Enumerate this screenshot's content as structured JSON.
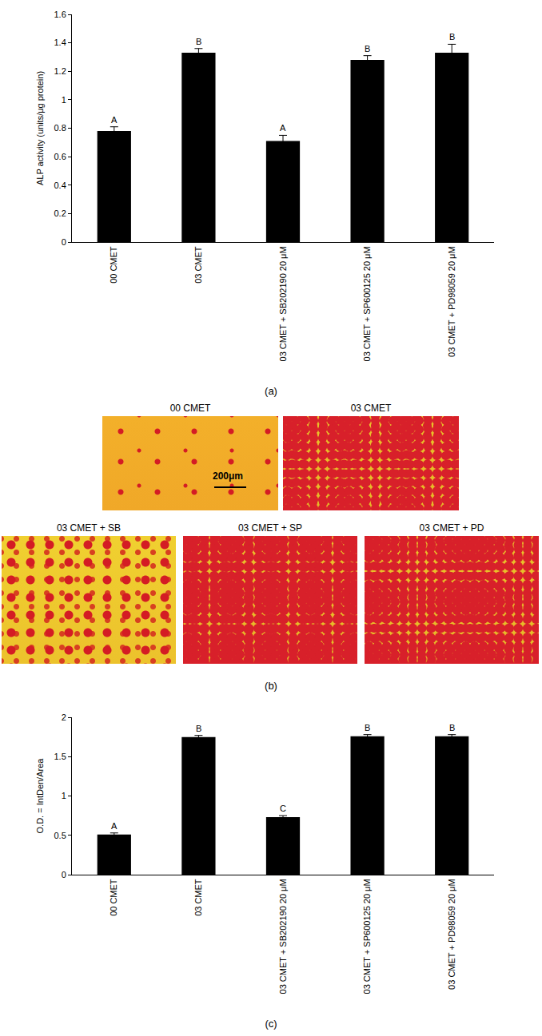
{
  "chart_data": [
    {
      "type": "bar",
      "panel_label": "(a)",
      "y_label": "ALP activity (units/μg protein)",
      "categories": [
        "00 CMET",
        "03 CMET",
        "03 CMET + SB202190 20 μM",
        "03 CMET + SP600125 20 μM",
        "03 CMET + PD98059 20 μM"
      ],
      "values": [
        0.78,
        1.33,
        0.71,
        1.28,
        1.33
      ],
      "errors": [
        0.03,
        0.03,
        0.04,
        0.03,
        0.06
      ],
      "significance_labels": [
        "A",
        "B",
        "A",
        "B",
        "B"
      ],
      "color": "#000000",
      "ylim": [
        0,
        1.6
      ],
      "yticks": [
        0,
        0.2,
        0.4,
        0.6,
        0.8,
        1,
        1.2,
        1.4,
        1.6
      ],
      "grid": false
    },
    {
      "type": "bar",
      "panel_label": "(c)",
      "y_label": "O.D. = IntDen/Area",
      "categories": [
        "00 CMET",
        "03 CMET",
        "03 CMET + SB202190 20 μM",
        "03 CMET + SP600125 20 μM",
        "03 CMET + PD98059 20 μM"
      ],
      "values": [
        0.51,
        1.75,
        0.73,
        1.76,
        1.76
      ],
      "errors": [
        0.02,
        0.02,
        0.02,
        0.02,
        0.02
      ],
      "significance_labels": [
        "A",
        "B",
        "C",
        "B",
        "B"
      ],
      "color": "#000000",
      "ylim": [
        0,
        2
      ],
      "yticks": [
        0,
        0.5,
        1,
        1.5,
        2
      ],
      "grid": false
    }
  ],
  "image_panel": {
    "panel_label": "(b)",
    "scale_bar": "200μm",
    "images": [
      {
        "label": "00 CMET"
      },
      {
        "label": "03 CMET"
      },
      {
        "label": "03 CMET + SB"
      },
      {
        "label": "03 CMET + SP"
      },
      {
        "label": "03 CMET + PD"
      }
    ]
  }
}
